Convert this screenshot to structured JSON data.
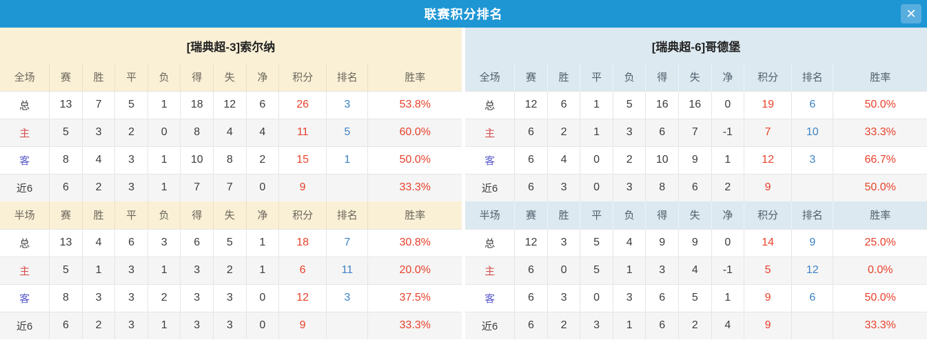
{
  "titlebar": {
    "title": "联赛积分排名",
    "close_icon": "✕"
  },
  "colors": {
    "titlebar_blue": "#1e96d4",
    "close_button_blue": "#58addf",
    "left_header_bg": "#faf0d6",
    "right_header_bg": "#dce9f0",
    "row_alt_bg": "#f5f5f5",
    "points_red": "#e8402a",
    "rank_blue": "#3b82c4",
    "home_label_red": "#d4504e",
    "away_label_blue": "#5a5acb"
  },
  "columns": [
    "赛",
    "胜",
    "平",
    "负",
    "得",
    "失",
    "净",
    "积分",
    "排名",
    "胜率"
  ],
  "panels": [
    {
      "team": "[瑞典超-3]索尔纳",
      "theme": "cream",
      "sections": [
        {
          "scope": "全场",
          "rows": [
            {
              "label": "总",
              "values": [
                "13",
                "7",
                "5",
                "1",
                "18",
                "12",
                "6",
                "26",
                "3",
                "53.8%"
              ]
            },
            {
              "label": "主",
              "values": [
                "5",
                "3",
                "2",
                "0",
                "8",
                "4",
                "4",
                "11",
                "5",
                "60.0%"
              ]
            },
            {
              "label": "客",
              "values": [
                "8",
                "4",
                "3",
                "1",
                "10",
                "8",
                "2",
                "15",
                "1",
                "50.0%"
              ]
            },
            {
              "label": "近6",
              "values": [
                "6",
                "2",
                "3",
                "1",
                "7",
                "7",
                "0",
                "9",
                "",
                "33.3%"
              ]
            }
          ]
        },
        {
          "scope": "半场",
          "rows": [
            {
              "label": "总",
              "values": [
                "13",
                "4",
                "6",
                "3",
                "6",
                "5",
                "1",
                "18",
                "7",
                "30.8%"
              ]
            },
            {
              "label": "主",
              "values": [
                "5",
                "1",
                "3",
                "1",
                "3",
                "2",
                "1",
                "6",
                "11",
                "20.0%"
              ]
            },
            {
              "label": "客",
              "values": [
                "8",
                "3",
                "3",
                "2",
                "3",
                "3",
                "0",
                "12",
                "3",
                "37.5%"
              ]
            },
            {
              "label": "近6",
              "values": [
                "6",
                "2",
                "3",
                "1",
                "3",
                "3",
                "0",
                "9",
                "",
                "33.3%"
              ]
            }
          ]
        }
      ]
    },
    {
      "team": "[瑞典超-6]哥德堡",
      "theme": "blue",
      "sections": [
        {
          "scope": "全场",
          "rows": [
            {
              "label": "总",
              "values": [
                "12",
                "6",
                "1",
                "5",
                "16",
                "16",
                "0",
                "19",
                "6",
                "50.0%"
              ]
            },
            {
              "label": "主",
              "values": [
                "6",
                "2",
                "1",
                "3",
                "6",
                "7",
                "-1",
                "7",
                "10",
                "33.3%"
              ]
            },
            {
              "label": "客",
              "values": [
                "6",
                "4",
                "0",
                "2",
                "10",
                "9",
                "1",
                "12",
                "3",
                "66.7%"
              ]
            },
            {
              "label": "近6",
              "values": [
                "6",
                "3",
                "0",
                "3",
                "8",
                "6",
                "2",
                "9",
                "",
                "50.0%"
              ]
            }
          ]
        },
        {
          "scope": "半场",
          "rows": [
            {
              "label": "总",
              "values": [
                "12",
                "3",
                "5",
                "4",
                "9",
                "9",
                "0",
                "14",
                "9",
                "25.0%"
              ]
            },
            {
              "label": "主",
              "values": [
                "6",
                "0",
                "5",
                "1",
                "3",
                "4",
                "-1",
                "5",
                "12",
                "0.0%"
              ]
            },
            {
              "label": "客",
              "values": [
                "6",
                "3",
                "0",
                "3",
                "6",
                "5",
                "1",
                "9",
                "6",
                "50.0%"
              ]
            },
            {
              "label": "近6",
              "values": [
                "6",
                "2",
                "3",
                "1",
                "6",
                "2",
                "4",
                "9",
                "",
                "33.3%"
              ]
            }
          ]
        }
      ]
    }
  ]
}
